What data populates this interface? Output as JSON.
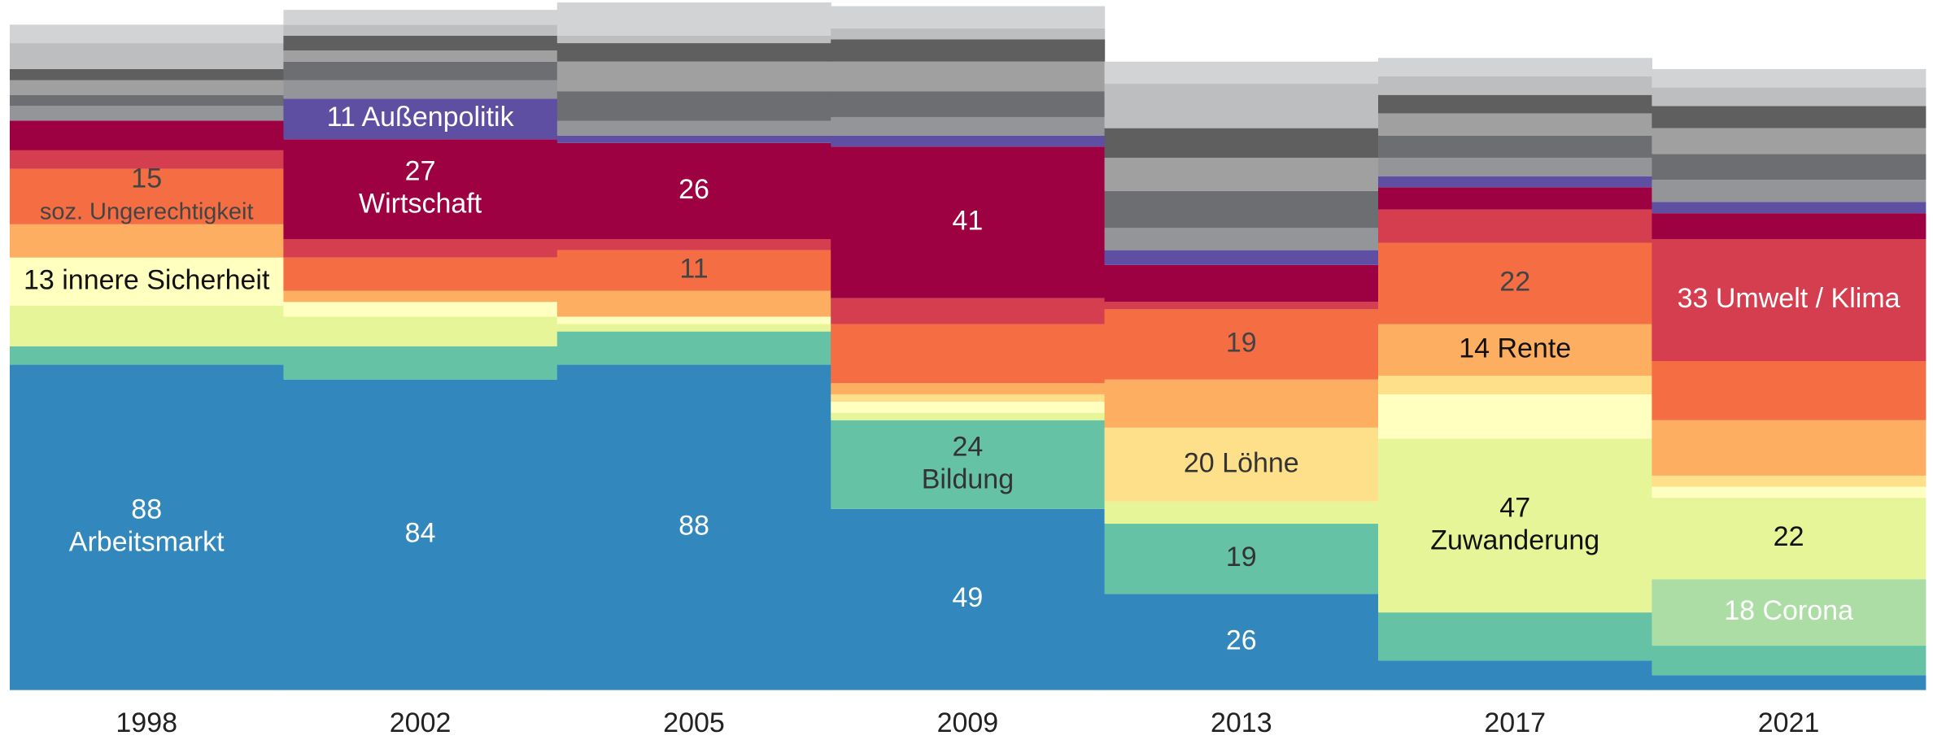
{
  "chart_data": {
    "type": "bar",
    "stacked": true,
    "categories": [
      "1998",
      "2002",
      "2005",
      "2009",
      "2013",
      "2017",
      "2021"
    ],
    "series": [
      {
        "name": "Arbeitsmarkt",
        "color": "#3288bd",
        "label_color": "#ffffff",
        "values": [
          88,
          84,
          88,
          49,
          26,
          8,
          4
        ],
        "value_labels": [
          "88\nArbeitsmarkt",
          "84",
          "88",
          "49",
          "26",
          null,
          null
        ]
      },
      {
        "name": "Bildung",
        "color": "#66c2a5",
        "label_color": "#333333",
        "values": [
          5,
          9,
          9,
          24,
          19,
          13,
          8
        ],
        "value_labels": [
          null,
          null,
          null,
          "24\nBildung",
          "19",
          null,
          null
        ]
      },
      {
        "name": "Corona",
        "color": "#abdda4",
        "label_color": "#ffffff",
        "values": [
          0,
          0,
          0,
          0,
          0,
          0,
          18
        ],
        "value_labels": [
          null,
          null,
          null,
          null,
          null,
          null,
          "18 Corona"
        ]
      },
      {
        "name": "Zuwanderung",
        "color": "#e6f598",
        "label_color": "#111111",
        "values": [
          11,
          8,
          2,
          2,
          6,
          47,
          22
        ],
        "value_labels": [
          null,
          null,
          null,
          null,
          null,
          "47\nZuwanderung",
          "22"
        ]
      },
      {
        "name": "innere Sicherheit",
        "color": "#ffffbf",
        "label_color": "#111111",
        "values": [
          13,
          4,
          2,
          3,
          0,
          12,
          3
        ],
        "value_labels": [
          "13 innere Sicherheit",
          null,
          null,
          null,
          null,
          null,
          null
        ]
      },
      {
        "name": "Löhne",
        "color": "#fee08b",
        "label_color": "#333333",
        "values": [
          0,
          0,
          0,
          2,
          20,
          5,
          3
        ],
        "value_labels": [
          null,
          null,
          null,
          null,
          "20 Löhne",
          null,
          null
        ]
      },
      {
        "name": "Rente",
        "color": "#fdae61",
        "label_color": "#111111",
        "values": [
          9,
          3,
          7,
          3,
          13,
          14,
          15
        ],
        "value_labels": [
          null,
          null,
          null,
          null,
          null,
          "14 Rente",
          null
        ]
      },
      {
        "name": "soz. Ungerechtigkeit",
        "color": "#f46d43",
        "label_color": "#444444",
        "values": [
          15,
          9,
          11,
          16,
          19,
          22,
          16
        ],
        "value_labels": [
          "15\nsoz. Ungerechtigkeit",
          null,
          "11",
          null,
          "19",
          "22",
          null
        ]
      },
      {
        "name": "Umwelt / Klima",
        "color": "#d53e4f",
        "label_color": "#ffffff",
        "values": [
          5,
          5,
          3,
          7,
          2,
          9,
          33
        ],
        "value_labels": [
          null,
          null,
          null,
          null,
          null,
          null,
          "33 Umwelt / Klima"
        ]
      },
      {
        "name": "Wirtschaft",
        "color": "#9e0142",
        "label_color": "#ffffff",
        "values": [
          8,
          27,
          26,
          41,
          10,
          6,
          7
        ],
        "value_labels": [
          null,
          "27\nWirtschaft",
          "26",
          "41",
          null,
          null,
          null
        ]
      },
      {
        "name": "Außenpolitik",
        "color": "#5e4fa2",
        "label_color": "#ffffff",
        "values": [
          0,
          11,
          2,
          3,
          4,
          3,
          3
        ],
        "value_labels": [
          null,
          "11 Außenpolitik",
          null,
          null,
          null,
          null,
          null
        ]
      },
      {
        "color": "#939598",
        "values": [
          4,
          5,
          4,
          5,
          6,
          5,
          6
        ]
      },
      {
        "color": "#6d6e71",
        "values": [
          3,
          5,
          8,
          7,
          10,
          6,
          7
        ]
      },
      {
        "color": "#a0a0a0",
        "values": [
          4,
          3,
          8,
          8,
          9,
          6,
          7
        ]
      },
      {
        "color": "#5f5f5f",
        "values": [
          3,
          4,
          5,
          6,
          8,
          5,
          6
        ]
      },
      {
        "color": "#bcbec0",
        "values": [
          7,
          3,
          2,
          3,
          12,
          5,
          5
        ]
      },
      {
        "color": "#d1d3d4",
        "values": [
          5,
          4,
          9,
          6,
          6,
          5,
          5
        ]
      }
    ]
  }
}
